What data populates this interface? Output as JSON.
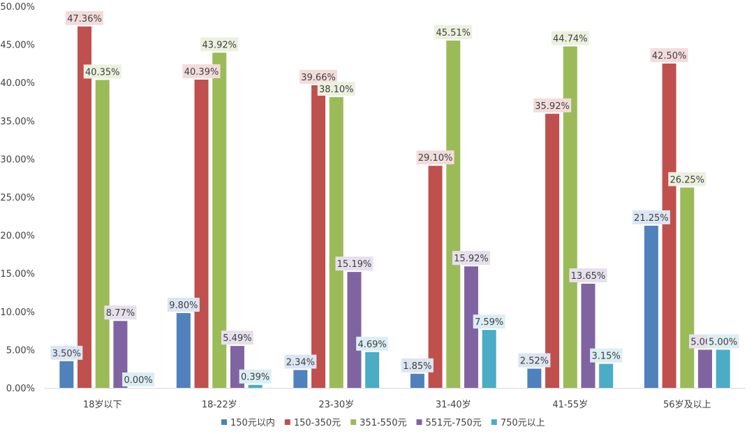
{
  "chart_data": {
    "type": "bar",
    "categories": [
      "18岁以下",
      "18-22岁",
      "23-30岁",
      "31-40岁",
      "41-55岁",
      "56岁及以上"
    ],
    "series": [
      {
        "name": "150元以内",
        "color": "#4F81BD",
        "label_bg": "#DCE6F2",
        "values": [
          3.5,
          9.8,
          2.34,
          1.85,
          2.52,
          21.25
        ],
        "labels": [
          "3.50%",
          "9.80%",
          "2.34%",
          "1.85%",
          "2.52%",
          "21.25%"
        ]
      },
      {
        "name": "150-350元",
        "color": "#C0504D",
        "label_bg": "#F2DCDB",
        "values": [
          47.36,
          40.39,
          39.66,
          29.1,
          35.92,
          42.5
        ],
        "labels": [
          "47.36%",
          "40.39%",
          "39.66%",
          "29.10%",
          "35.92%",
          "42.50%"
        ]
      },
      {
        "name": "351-550元",
        "color": "#9BBB59",
        "label_bg": "#EBF1DE",
        "values": [
          40.35,
          43.92,
          38.1,
          45.51,
          44.74,
          26.25
        ],
        "labels": [
          "40.35%",
          "43.92%",
          "38.10%",
          "45.51%",
          "44.74%",
          "26.25%"
        ]
      },
      {
        "name": "551元-750元",
        "color": "#8064A2",
        "label_bg": "#E5E0EC",
        "values": [
          8.77,
          5.49,
          15.19,
          15.92,
          13.65,
          5.0
        ],
        "labels": [
          "8.77%",
          "5.49%",
          "15.19%",
          "15.92%",
          "13.65%",
          "5.00%"
        ]
      },
      {
        "name": "750元以上",
        "color": "#4BACC6",
        "label_bg": "#DBEEF3",
        "values": [
          0.0,
          0.39,
          4.69,
          7.59,
          3.15,
          5.0
        ],
        "labels": [
          "0.00%",
          "0.39%",
          "4.69%",
          "7.59%",
          "3.15%",
          "5.00%"
        ]
      }
    ],
    "y_ticks": [
      "0.00%",
      "5.00%",
      "10.00%",
      "15.00%",
      "20.00%",
      "25.00%",
      "30.00%",
      "35.00%",
      "40.00%",
      "45.00%",
      "50.00%"
    ],
    "ylim": [
      0,
      50
    ],
    "ytick_step": 5,
    "grid": false,
    "legend_position": "bottom",
    "axis_color": "#D9D9D9",
    "text_color": "#404040"
  }
}
